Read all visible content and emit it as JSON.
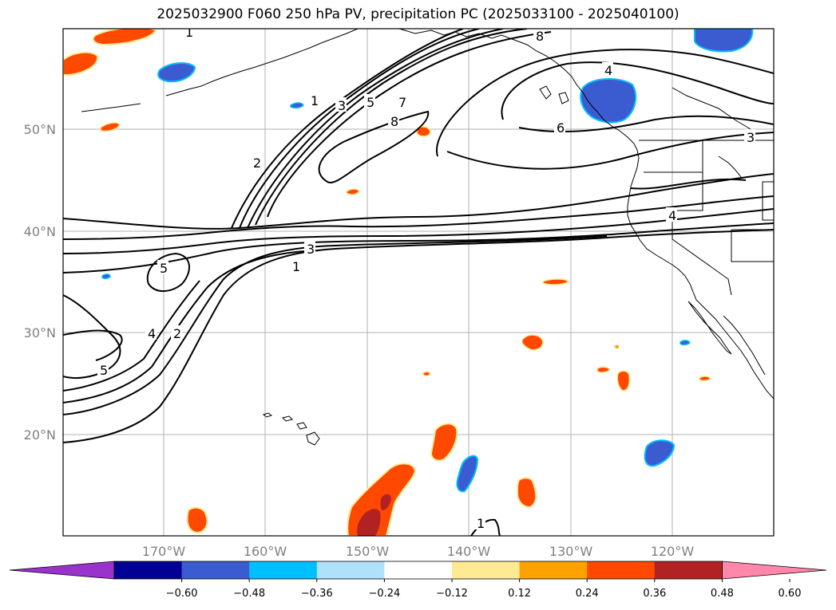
{
  "title": "2025032900 F060 250 hPa PV, precipitation PC (2025033100 - 2025040100)",
  "map": {
    "lat_labels": [
      "50°N",
      "40°N",
      "30°N",
      "20°N"
    ],
    "lon_labels": [
      "170°W",
      "160°W",
      "150°W",
      "140°W",
      "130°W",
      "120°W"
    ],
    "contour_labels": [
      {
        "text": "1"
      },
      {
        "text": "3"
      },
      {
        "text": "5"
      },
      {
        "text": "7"
      },
      {
        "text": "8"
      },
      {
        "text": "2"
      },
      {
        "text": "3"
      },
      {
        "text": "1"
      },
      {
        "text": "5"
      },
      {
        "text": "4"
      },
      {
        "text": "2"
      },
      {
        "text": "5"
      },
      {
        "text": "6"
      },
      {
        "text": "4"
      },
      {
        "text": "3"
      },
      {
        "text": "4"
      },
      {
        "text": "1"
      },
      {
        "text": "8"
      },
      {
        "text": "1"
      }
    ]
  },
  "colorbar": {
    "colors": [
      "#9a33cc",
      "#000094",
      "#3b5bd1",
      "#00bfff",
      "#aee2fb",
      "#ffffff",
      "#ffea94",
      "#ffa200",
      "#ff4800",
      "#b22222",
      "#ff87aa"
    ],
    "tick_labels": [
      "−0.60",
      "−0.48",
      "−0.36",
      "−0.24",
      "−0.12",
      "0.12",
      "0.24",
      "0.36",
      "0.48",
      "0.60"
    ]
  }
}
